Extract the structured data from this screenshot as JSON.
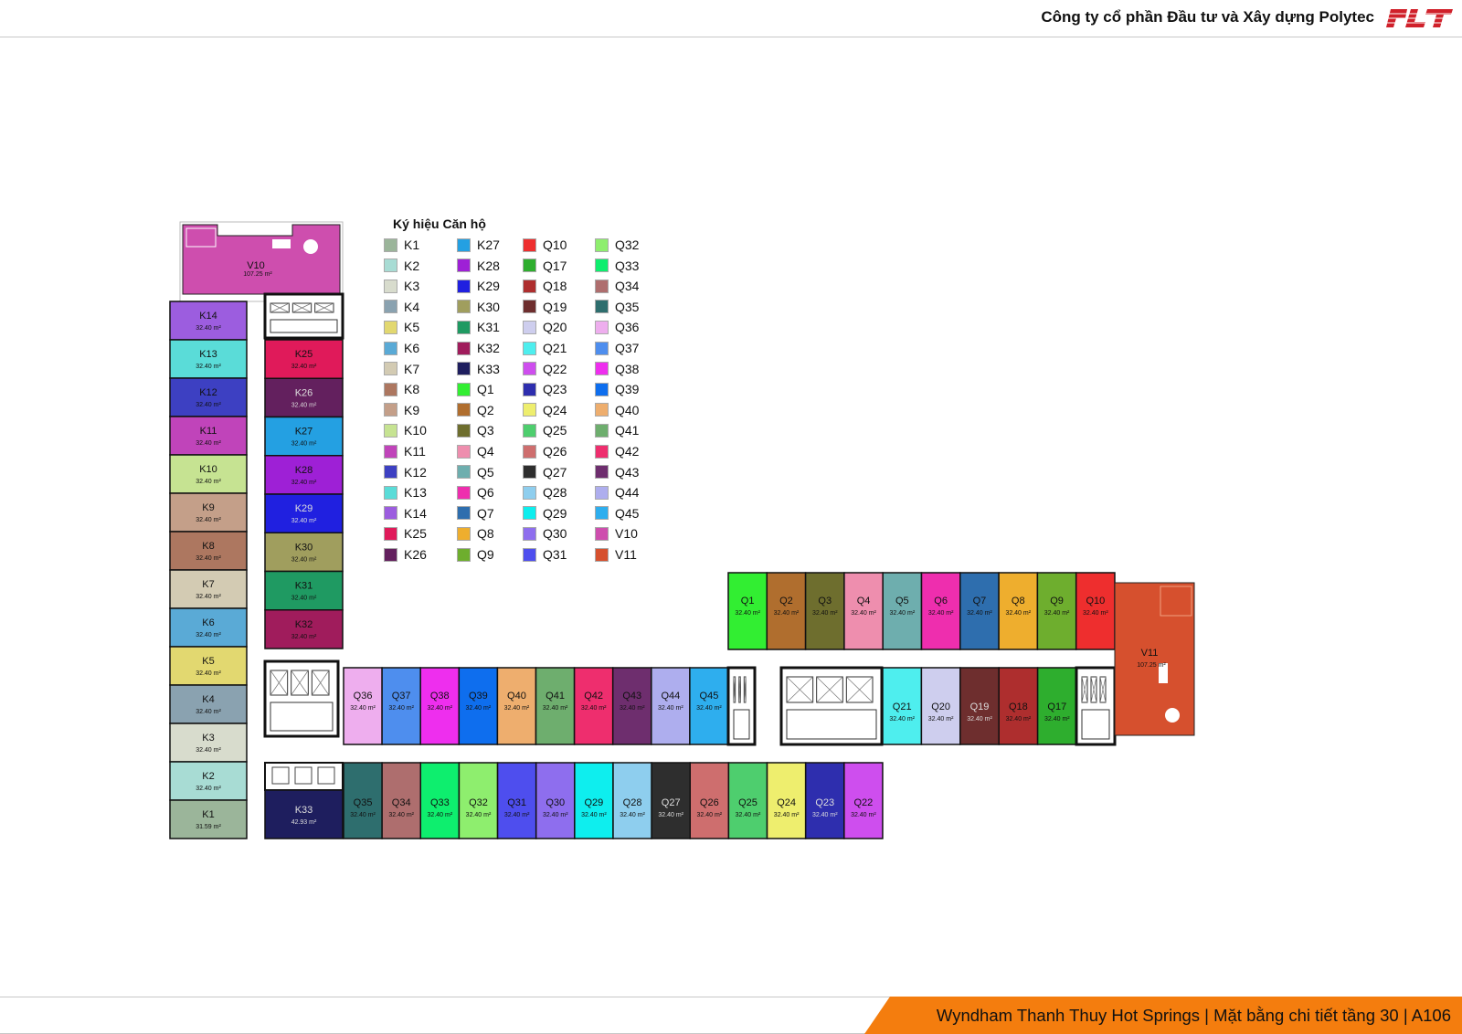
{
  "header": {
    "company": "Công ty cổ phần Đầu tư và Xây dựng Polytec",
    "logo_text": "PLT",
    "logo_color": "#d0202a"
  },
  "footer": {
    "text": "Wyndham Thanh Thuy Hot Springs | Mặt bằng chi tiết tầng 30 | A106",
    "color": "#f47d0e"
  },
  "legend": {
    "title": "Ký hiệu Căn hộ",
    "items": [
      {
        "code": "K1",
        "color": "#9bb59a"
      },
      {
        "code": "K2",
        "color": "#a8dcd4"
      },
      {
        "code": "K3",
        "color": "#d8dccd"
      },
      {
        "code": "K4",
        "color": "#8aa2b0"
      },
      {
        "code": "K5",
        "color": "#e2d870"
      },
      {
        "code": "K6",
        "color": "#5aaad6"
      },
      {
        "code": "K7",
        "color": "#d3cbb3"
      },
      {
        "code": "K8",
        "color": "#ad7760"
      },
      {
        "code": "K9",
        "color": "#c49f89"
      },
      {
        "code": "K10",
        "color": "#c6e392"
      },
      {
        "code": "K11",
        "color": "#c044ba"
      },
      {
        "code": "K12",
        "color": "#3d40c2"
      },
      {
        "code": "K13",
        "color": "#5adcd8"
      },
      {
        "code": "K14",
        "color": "#9c5ddf"
      },
      {
        "code": "K25",
        "color": "#e01a5a"
      },
      {
        "code": "K26",
        "color": "#63205e"
      },
      {
        "code": "K27",
        "color": "#24a0e2"
      },
      {
        "code": "K28",
        "color": "#9e20d6"
      },
      {
        "code": "K29",
        "color": "#2020e0"
      },
      {
        "code": "K30",
        "color": "#a09e5e"
      },
      {
        "code": "K31",
        "color": "#1f9a62"
      },
      {
        "code": "K32",
        "color": "#a01c5c"
      },
      {
        "code": "K33",
        "color": "#1e1e5e"
      },
      {
        "code": "Q1",
        "color": "#32ee32"
      },
      {
        "code": "Q2",
        "color": "#b06e2e"
      },
      {
        "code": "Q3",
        "color": "#6e6e2e"
      },
      {
        "code": "Q4",
        "color": "#ee8eae"
      },
      {
        "code": "Q5",
        "color": "#6eaeae"
      },
      {
        "code": "Q6",
        "color": "#ee2eae"
      },
      {
        "code": "Q7",
        "color": "#2e6eae"
      },
      {
        "code": "Q8",
        "color": "#eeae2e"
      },
      {
        "code": "Q9",
        "color": "#6eae2e"
      },
      {
        "code": "Q10",
        "color": "#ee2e2e"
      },
      {
        "code": "Q17",
        "color": "#2eae2e"
      },
      {
        "code": "Q18",
        "color": "#ae2e2e"
      },
      {
        "code": "Q19",
        "color": "#6e2e2e"
      },
      {
        "code": "Q20",
        "color": "#ceceee"
      },
      {
        "code": "Q21",
        "color": "#4eeeee"
      },
      {
        "code": "Q22",
        "color": "#ce4eee"
      },
      {
        "code": "Q23",
        "color": "#2e2eae"
      },
      {
        "code": "Q24",
        "color": "#eeee6e"
      },
      {
        "code": "Q25",
        "color": "#4ece6e"
      },
      {
        "code": "Q26",
        "color": "#ce6e6e"
      },
      {
        "code": "Q27",
        "color": "#2e2e2e"
      },
      {
        "code": "Q28",
        "color": "#8eceee"
      },
      {
        "code": "Q29",
        "color": "#0eeeee"
      },
      {
        "code": "Q30",
        "color": "#8e6eee"
      },
      {
        "code": "Q31",
        "color": "#4e4eee"
      },
      {
        "code": "Q32",
        "color": "#8eee6e"
      },
      {
        "code": "Q33",
        "color": "#0eee6e"
      },
      {
        "code": "Q34",
        "color": "#ae6e6e"
      },
      {
        "code": "Q35",
        "color": "#2e6e6e"
      },
      {
        "code": "Q36",
        "color": "#eeaeee"
      },
      {
        "code": "Q37",
        "color": "#4e8eee"
      },
      {
        "code": "Q38",
        "color": "#ee2eee"
      },
      {
        "code": "Q39",
        "color": "#0e6eee"
      },
      {
        "code": "Q40",
        "color": "#eeae6e"
      },
      {
        "code": "Q41",
        "color": "#6eae6e"
      },
      {
        "code": "Q42",
        "color": "#ee2e6e"
      },
      {
        "code": "Q43",
        "color": "#6e2e6e"
      },
      {
        "code": "Q44",
        "color": "#aeaeee"
      },
      {
        "code": "Q45",
        "color": "#2eaeee"
      },
      {
        "code": "V10",
        "color": "#ce4eae"
      },
      {
        "code": "V11",
        "color": "#d6502e"
      }
    ]
  },
  "plan": {
    "k_left": [
      {
        "code": "K14",
        "area": "32.40 m²"
      },
      {
        "code": "K13",
        "area": "32.40 m²"
      },
      {
        "code": "K12",
        "area": "32.40 m²"
      },
      {
        "code": "K11",
        "area": "32.40 m²"
      },
      {
        "code": "K10",
        "area": "32.40 m²"
      },
      {
        "code": "K9",
        "area": "32.40 m²"
      },
      {
        "code": "K8",
        "area": "32.40 m²"
      },
      {
        "code": "K7",
        "area": "32.40 m²"
      },
      {
        "code": "K6",
        "area": "32.40 m²"
      },
      {
        "code": "K5",
        "area": "32.40 m²"
      },
      {
        "code": "K4",
        "area": "32.40 m²"
      },
      {
        "code": "K3",
        "area": "32.40 m²"
      },
      {
        "code": "K2",
        "area": "32.40 m²"
      },
      {
        "code": "K1",
        "area": "31.59 m²"
      }
    ],
    "k_right": [
      {
        "code": "K25",
        "area": "32.40 m²"
      },
      {
        "code": "K26",
        "area": "32.40 m²"
      },
      {
        "code": "K27",
        "area": "32.40 m²"
      },
      {
        "code": "K28",
        "area": "32.40 m²"
      },
      {
        "code": "K29",
        "area": "32.40 m²"
      },
      {
        "code": "K30",
        "area": "32.40 m²"
      },
      {
        "code": "K31",
        "area": "32.40 m²"
      },
      {
        "code": "K32",
        "area": "32.40 m²"
      }
    ],
    "k33": {
      "code": "K33",
      "area": "42.93 m²"
    },
    "v10": {
      "code": "V10",
      "area": "107.25 m²"
    },
    "v11": {
      "code": "V11",
      "area": "107.25 m²"
    },
    "q_middle": [
      {
        "code": "Q36",
        "area": "32.40 m²"
      },
      {
        "code": "Q37",
        "area": "32.40 m²"
      },
      {
        "code": "Q38",
        "area": "32.40 m²"
      },
      {
        "code": "Q39",
        "area": "32.40 m²"
      },
      {
        "code": "Q40",
        "area": "32.40 m²"
      },
      {
        "code": "Q41",
        "area": "32.40 m²"
      },
      {
        "code": "Q42",
        "area": "32.40 m²"
      },
      {
        "code": "Q43",
        "area": "32.40 m²"
      },
      {
        "code": "Q44",
        "area": "32.40 m²"
      },
      {
        "code": "Q45",
        "area": "32.40 m²"
      }
    ],
    "q_bottom": [
      {
        "code": "Q35",
        "area": "32.40 m²"
      },
      {
        "code": "Q34",
        "area": "32.40 m²"
      },
      {
        "code": "Q33",
        "area": "32.40 m²"
      },
      {
        "code": "Q32",
        "area": "32.40 m²"
      },
      {
        "code": "Q31",
        "area": "32.40 m²"
      },
      {
        "code": "Q30",
        "area": "32.40 m²"
      },
      {
        "code": "Q29",
        "area": "32.40 m²"
      },
      {
        "code": "Q28",
        "area": "32.40 m²"
      },
      {
        "code": "Q27",
        "area": "32.40 m²"
      },
      {
        "code": "Q26",
        "area": "32.40 m²"
      },
      {
        "code": "Q25",
        "area": "32.40 m²"
      },
      {
        "code": "Q24",
        "area": "32.40 m²"
      },
      {
        "code": "Q23",
        "area": "32.40 m²"
      },
      {
        "code": "Q22",
        "area": "32.40 m²"
      }
    ],
    "q_top": [
      {
        "code": "Q1",
        "area": "32.40 m²"
      },
      {
        "code": "Q2",
        "area": "32.40 m²"
      },
      {
        "code": "Q3",
        "area": "32.40 m²"
      },
      {
        "code": "Q4",
        "area": "32.40 m²"
      },
      {
        "code": "Q5",
        "area": "32.40 m²"
      },
      {
        "code": "Q6",
        "area": "32.40 m²"
      },
      {
        "code": "Q7",
        "area": "32.40 m²"
      },
      {
        "code": "Q8",
        "area": "32.40 m²"
      },
      {
        "code": "Q9",
        "area": "32.40 m²"
      },
      {
        "code": "Q10",
        "area": "32.40 m²"
      }
    ],
    "q_right": [
      {
        "code": "Q21",
        "area": "32.40 m²"
      },
      {
        "code": "Q20",
        "area": "32.40 m²"
      },
      {
        "code": "Q19",
        "area": "32.40 m²"
      },
      {
        "code": "Q18",
        "area": "32.40 m²"
      },
      {
        "code": "Q17",
        "area": "32.40 m²"
      }
    ]
  }
}
